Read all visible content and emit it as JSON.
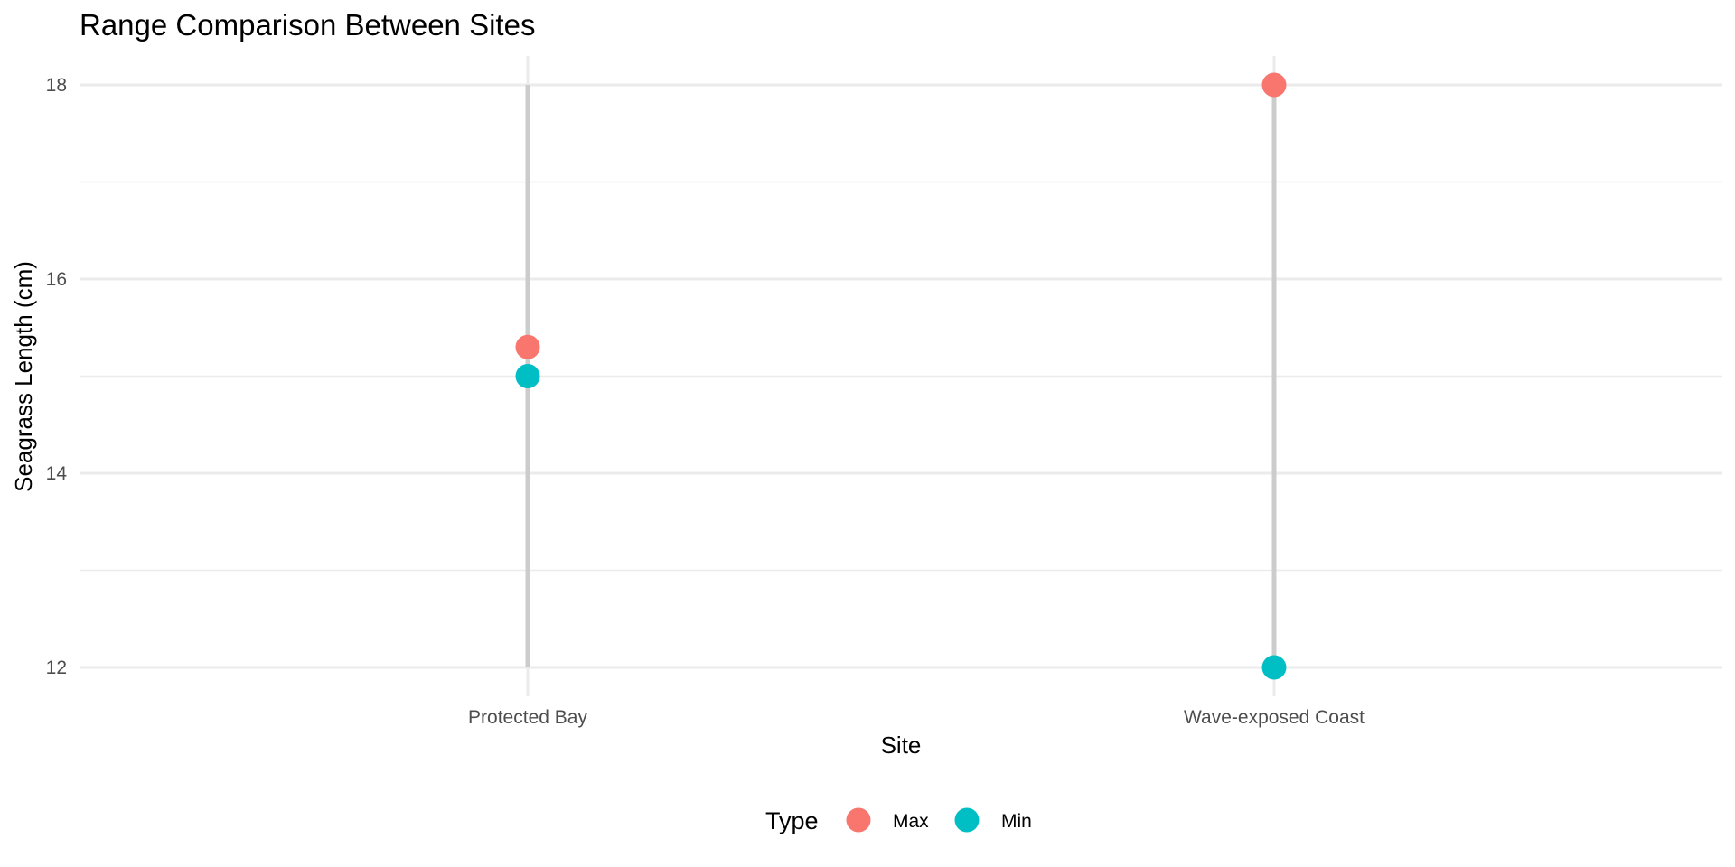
{
  "chart_data": {
    "type": "scatter",
    "title": "Range Comparison Between Sites",
    "xlabel": "Site",
    "ylabel": "Seagrass Length (cm)",
    "categories": [
      "Protected Bay",
      "Wave-exposed Coast"
    ],
    "ylim": [
      11.7,
      18.3
    ],
    "y_ticks": [
      "12",
      "14",
      "16",
      "18"
    ],
    "y_minor_ticks": [
      13,
      15,
      17
    ],
    "grid": true,
    "range_segments": [
      {
        "category": "Protected Bay",
        "from": 12,
        "to": 18
      },
      {
        "category": "Wave-exposed Coast",
        "from": 12,
        "to": 18
      }
    ],
    "series": [
      {
        "name": "Max",
        "color": "#F8766D",
        "values": [
          15.3,
          18
        ]
      },
      {
        "name": "Min",
        "color": "#00BFC4",
        "values": [
          15,
          12
        ]
      }
    ],
    "legend": {
      "title": "Type",
      "position": "bottom"
    },
    "segment_color": "#cccccc",
    "grid_color": "#ebebeb"
  }
}
